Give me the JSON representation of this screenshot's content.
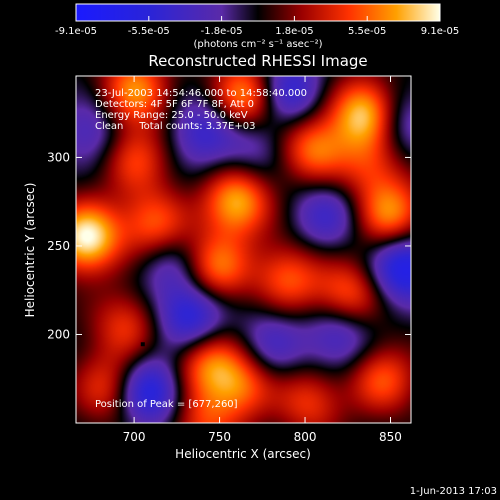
{
  "chart_data": {
    "type": "heatmap",
    "title": "Reconstructed RHESSI Image",
    "xlabel": "Heliocentric X (arcsec)",
    "ylabel": "Heliocentric Y (arcsec)",
    "xlim": [
      666,
      862
    ],
    "ylim": [
      150,
      346
    ],
    "x_ticks": [
      700,
      750,
      800,
      850
    ],
    "y_ticks": [
      200,
      250,
      300
    ],
    "colorbar": {
      "ticks": [
        "-9.1e-05",
        "-5.5e-05",
        "-1.8e-05",
        "1.8e-05",
        "5.5e-05",
        "9.1e-05"
      ],
      "range": [
        -9.1e-05,
        9.1e-05
      ],
      "units": "(photons cm⁻² s⁻¹ asec⁻²)"
    },
    "annotations": [
      "23-Jul-2003 14:54:46.000 to 14:58:40.000",
      "Detectors: 4F 5F 6F 7F 8F, Att 0",
      "Energy Range: 25.0 - 50.0 keV",
      "Clean     Total counts: 3.37E+03"
    ],
    "peak_label": "Position of Peak = [677,260]",
    "peak": [
      677,
      260
    ],
    "date_stamp": "1-Jun-2013 17:03",
    "blobs": [
      {
        "x": 672,
        "y": 255,
        "v": 1.0
      },
      {
        "x": 700,
        "y": 338,
        "v": 0.7
      },
      {
        "x": 765,
        "y": 335,
        "v": 0.75
      },
      {
        "x": 805,
        "y": 305,
        "v": 0.65
      },
      {
        "x": 835,
        "y": 325,
        "v": 0.9
      },
      {
        "x": 850,
        "y": 268,
        "v": 0.7
      },
      {
        "x": 760,
        "y": 275,
        "v": 0.8
      },
      {
        "x": 748,
        "y": 238,
        "v": 0.65
      },
      {
        "x": 712,
        "y": 262,
        "v": 0.6
      },
      {
        "x": 700,
        "y": 300,
        "v": 0.5
      },
      {
        "x": 825,
        "y": 222,
        "v": 0.6
      },
      {
        "x": 790,
        "y": 232,
        "v": 0.55
      },
      {
        "x": 742,
        "y": 185,
        "v": 0.6
      },
      {
        "x": 762,
        "y": 172,
        "v": 0.6
      },
      {
        "x": 845,
        "y": 175,
        "v": 0.55
      },
      {
        "x": 685,
        "y": 170,
        "v": 0.5
      },
      {
        "x": 695,
        "y": 205,
        "v": 0.45
      },
      {
        "x": 802,
        "y": 162,
        "v": 0.45
      },
      {
        "x": 740,
        "y": 150,
        "v": 0.45
      },
      {
        "x": 838,
        "y": 295,
        "v": 0.4
      },
      {
        "x": 740,
        "y": 315,
        "v": -0.5
      },
      {
        "x": 790,
        "y": 338,
        "v": -0.6
      },
      {
        "x": 733,
        "y": 210,
        "v": -0.7
      },
      {
        "x": 708,
        "y": 168,
        "v": -0.75
      },
      {
        "x": 858,
        "y": 238,
        "v": -0.8
      },
      {
        "x": 820,
        "y": 200,
        "v": -0.5
      },
      {
        "x": 675,
        "y": 315,
        "v": -0.4
      },
      {
        "x": 812,
        "y": 268,
        "v": -0.45
      },
      {
        "x": 720,
        "y": 240,
        "v": -0.35
      },
      {
        "x": 780,
        "y": 195,
        "v": -0.4
      },
      {
        "x": 855,
        "y": 320,
        "v": -0.4
      },
      {
        "x": 770,
        "y": 305,
        "v": -0.3
      }
    ]
  }
}
